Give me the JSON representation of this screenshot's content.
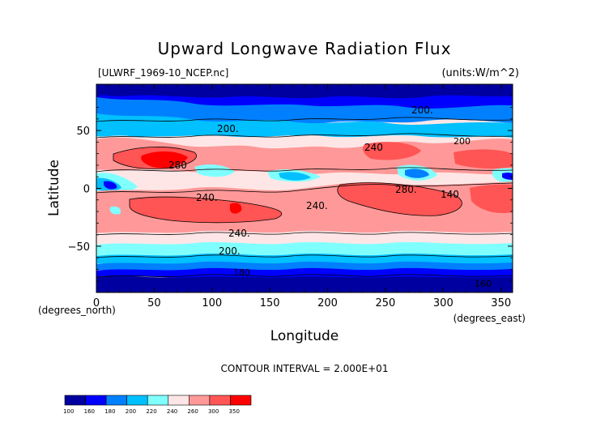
{
  "chart_data": {
    "type": "heatmap",
    "title": "Upward Longwave Radiation Flux",
    "subtitle_left": "[ULWRF_1969-10_NCEP.nc]",
    "units": "(units:W/m^2)",
    "xlabel": "Longitude",
    "ylabel": "Latitude",
    "x_unit": "(degrees_east)",
    "y_unit": "(degrees_north)",
    "xlim": [
      0,
      360
    ],
    "ylim": [
      -90,
      90
    ],
    "x_ticks": [
      "0",
      "50",
      "100",
      "150",
      "200",
      "250",
      "300",
      "350"
    ],
    "y_ticks": [
      "50",
      "0",
      "−50"
    ],
    "contour_interval_text": "CONTOUR INTERVAL = 2.000E+01",
    "contour_labels": [
      "200.",
      "240",
      "280",
      "280.",
      "240.",
      "240.",
      "240.",
      "200.",
      "200.",
      "140",
      "160",
      "200",
      "180"
    ],
    "colorbar": {
      "levels": [
        "100",
        "160",
        "180",
        "200",
        "220",
        "240",
        "260",
        "300",
        "350"
      ],
      "colors": [
        "#0000a0",
        "#0000ff",
        "#0080ff",
        "#00c0ff",
        "#80ffff",
        "#ffe6e6",
        "#ff9999",
        "#ff5555",
        "#ff0000"
      ]
    },
    "latitude_bands": [
      {
        "lat": [
          60,
          90
        ],
        "range": "140-200",
        "color": "#0000ff"
      },
      {
        "lat": [
          35,
          60
        ],
        "range": "200-240",
        "color": "#00c0ff"
      },
      {
        "lat": [
          -15,
          35
        ],
        "range": "240-300",
        "color": "#ff9999"
      },
      {
        "lat": [
          -35,
          -15
        ],
        "range": "240-280",
        "color": "#ff5555"
      },
      {
        "lat": [
          -60,
          -35
        ],
        "range": "200-240",
        "color": "#80ffff"
      },
      {
        "lat": [
          -90,
          -60
        ],
        "range": "100-200",
        "color": "#0000a0"
      }
    ]
  }
}
